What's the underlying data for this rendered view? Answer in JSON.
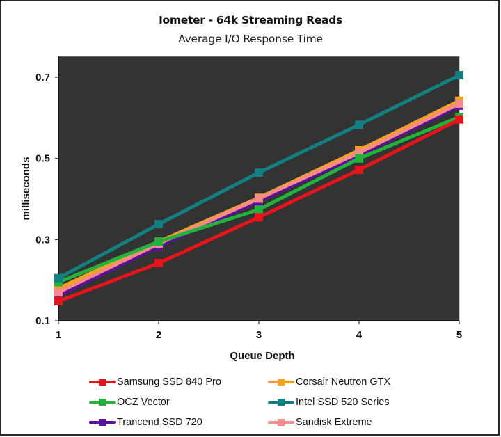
{
  "chart_data": {
    "type": "line",
    "title": "Iometer - 64k Streaming Reads",
    "subtitle": "Average I/O Response Time",
    "xlabel": "Queue Depth",
    "ylabel": "milliseconds",
    "x": [
      1,
      2,
      3,
      4,
      5
    ],
    "x_tick_labels": [
      "1",
      "2",
      "3",
      "4",
      "5"
    ],
    "y_ticks": [
      0.1,
      0.3,
      0.5,
      0.7
    ],
    "y_tick_labels": [
      "0.1",
      "0.3",
      "0.5",
      "0.7"
    ],
    "xlim": [
      1,
      5
    ],
    "ylim": [
      0.1,
      0.76
    ],
    "grid": false,
    "plot_background": "#333333",
    "legend_position": "bottom",
    "series": [
      {
        "name": "Samsung SSD 840 Pro",
        "color": "#e8141c",
        "values": [
          0.148,
          0.242,
          0.355,
          0.472,
          0.596
        ]
      },
      {
        "name": "Corsair Neutron GTX",
        "color": "#f5a020",
        "values": [
          0.18,
          0.295,
          0.403,
          0.52,
          0.642
        ]
      },
      {
        "name": "OCZ Vector",
        "color": "#22b43a",
        "values": [
          0.195,
          0.295,
          0.374,
          0.5,
          0.602
        ]
      },
      {
        "name": "Intel SSD 520 Series",
        "color": "#128080",
        "values": [
          0.205,
          0.338,
          0.465,
          0.583,
          0.705
        ]
      },
      {
        "name": "Trancend SSD 720",
        "color": "#5a10a0",
        "values": [
          0.162,
          0.284,
          0.395,
          0.508,
          0.63
        ]
      },
      {
        "name": "Sandisk Extreme",
        "color": "#f58a8a",
        "values": [
          0.17,
          0.29,
          0.401,
          0.514,
          0.635
        ]
      }
    ]
  }
}
